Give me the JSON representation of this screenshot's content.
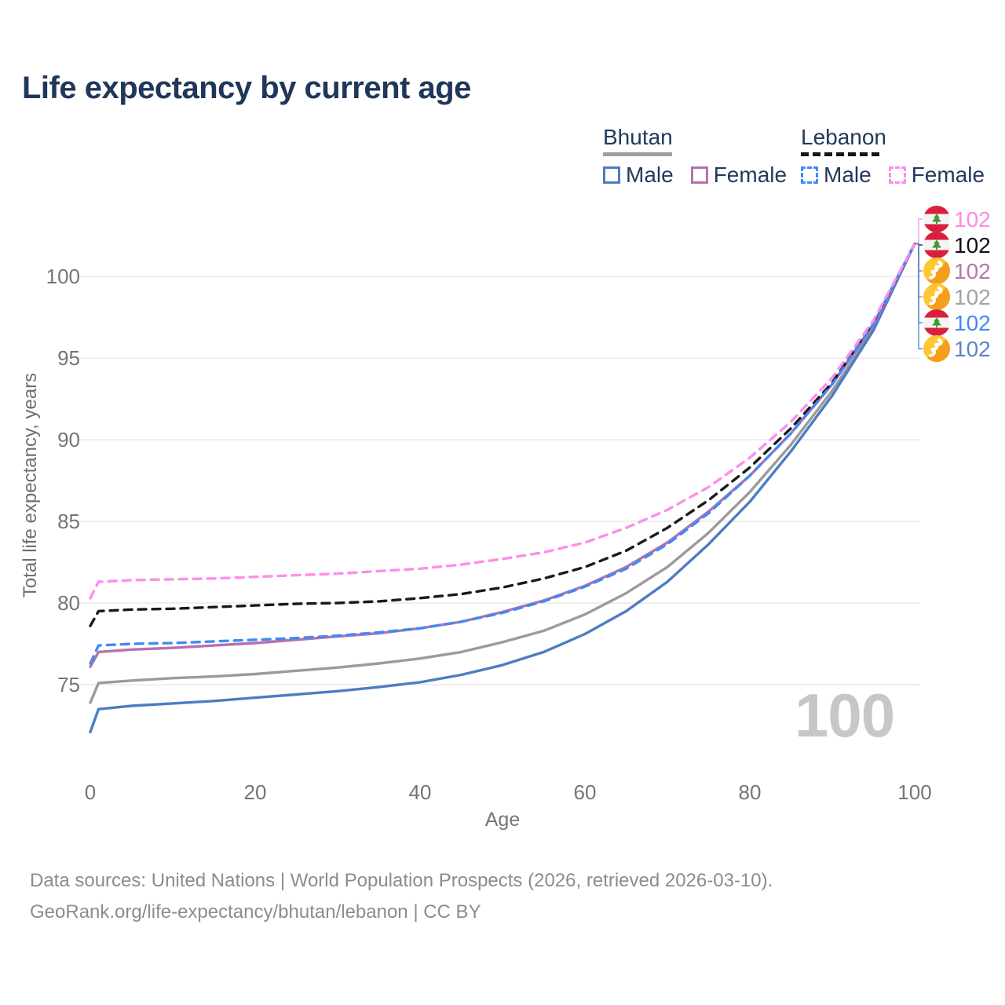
{
  "title": "Life expectancy by current age",
  "legend": {
    "groups": [
      {
        "country": "Bhutan",
        "line_style": "solid",
        "items": [
          {
            "label": "Male",
            "series": "bhutan-male"
          },
          {
            "label": "Female",
            "series": "bhutan-female"
          }
        ]
      },
      {
        "country": "Lebanon",
        "line_style": "dashed",
        "items": [
          {
            "label": "Male",
            "series": "lebanon-male"
          },
          {
            "label": "Female",
            "series": "lebanon-female"
          }
        ]
      }
    ]
  },
  "colors": {
    "title_text": "#1f3758",
    "legend_text": "#22395c",
    "bhutan_underline": "#9e9e9e",
    "lebanon_underline": "#141414",
    "gridline": "#eaeaea",
    "tick_text": "#757575",
    "axis_title_text": "#6e6e6e",
    "watermark_text": "#c7c7c7",
    "footer_text": "#8c8c8c",
    "lebanon_flag_red": "#d91f3c",
    "lebanon_flag_green": "#3a9b35",
    "bhutan_flag_yellow": "#ffc832",
    "bhutan_flag_orange": "#f69d1c"
  },
  "watermark": "100",
  "footer": {
    "line1": "Data sources: United Nations | World Population Prospects (2026, retrieved 2026-03-10).",
    "line2": "GeoRank.org/life-expectancy/bhutan/lebanon | CC BY"
  },
  "chart_data": {
    "type": "line",
    "title": "Life expectancy by current age",
    "xlabel": "Age",
    "ylabel": "Total life expectancy, years",
    "xlim": [
      0,
      100
    ],
    "ylim": [
      72,
      103
    ],
    "x_ticks": [
      0,
      20,
      40,
      60,
      80,
      100
    ],
    "y_ticks": [
      75,
      80,
      85,
      90,
      95,
      100
    ],
    "grid": "horizontal",
    "legend_position": "top-right",
    "x": [
      0,
      1,
      5,
      10,
      15,
      20,
      25,
      30,
      35,
      40,
      45,
      50,
      55,
      60,
      65,
      70,
      75,
      80,
      85,
      90,
      95,
      100
    ],
    "series": [
      {
        "id": "bhutan-both",
        "name": "Bhutan",
        "country": "Bhutan",
        "sex": "Both",
        "flag": "bhutan",
        "style": "solid",
        "color": "#9b9b9b",
        "label_color": "#a3a3a3",
        "end_label": "102",
        "values": [
          73.9,
          75.1,
          75.25,
          75.4,
          75.5,
          75.65,
          75.85,
          76.05,
          76.3,
          76.6,
          77.0,
          77.6,
          78.3,
          79.3,
          80.6,
          82.2,
          84.3,
          86.8,
          89.7,
          93.0,
          96.8,
          102
        ]
      },
      {
        "id": "bhutan-male",
        "name": "Bhutan Male",
        "country": "Bhutan",
        "sex": "Male",
        "flag": "bhutan",
        "style": "solid",
        "color": "#4d7cc3",
        "label_color": "#5b84c8",
        "end_label": "102",
        "values": [
          72.1,
          73.5,
          73.7,
          73.85,
          74.0,
          74.2,
          74.4,
          74.6,
          74.85,
          75.15,
          75.6,
          76.2,
          77.0,
          78.1,
          79.5,
          81.3,
          83.6,
          86.2,
          89.3,
          92.7,
          96.7,
          102
        ]
      },
      {
        "id": "bhutan-female",
        "name": "Bhutan Female",
        "country": "Bhutan",
        "sex": "Female",
        "flag": "bhutan",
        "style": "solid",
        "color": "#b671ae",
        "label_color": "#b577ad",
        "end_label": "102",
        "values": [
          76.1,
          77.0,
          77.15,
          77.25,
          77.4,
          77.55,
          77.75,
          77.95,
          78.15,
          78.45,
          78.85,
          79.45,
          80.15,
          81.05,
          82.2,
          83.7,
          85.6,
          87.8,
          90.4,
          93.4,
          97.0,
          102
        ]
      },
      {
        "id": "lebanon-both",
        "name": "Lebanon",
        "country": "Lebanon",
        "sex": "Both",
        "flag": "lebanon",
        "style": "dashed",
        "color": "#1a1a1a",
        "label_color": "#111111",
        "end_label": "102",
        "values": [
          78.6,
          79.5,
          79.6,
          79.65,
          79.75,
          79.85,
          79.95,
          80.0,
          80.1,
          80.3,
          80.55,
          80.95,
          81.5,
          82.2,
          83.2,
          84.6,
          86.3,
          88.3,
          90.7,
          93.5,
          97.2,
          102
        ]
      },
      {
        "id": "lebanon-male",
        "name": "Lebanon Male",
        "country": "Lebanon",
        "sex": "Male",
        "flag": "lebanon",
        "style": "dashed",
        "color": "#418af4",
        "label_color": "#418af4",
        "end_label": "102",
        "values": [
          76.3,
          77.4,
          77.5,
          77.55,
          77.65,
          77.75,
          77.85,
          78.0,
          78.2,
          78.45,
          78.85,
          79.4,
          80.1,
          81.0,
          82.1,
          83.6,
          85.5,
          87.8,
          90.4,
          93.4,
          97.1,
          102
        ]
      },
      {
        "id": "lebanon-female",
        "name": "Lebanon Female",
        "country": "Lebanon",
        "sex": "Female",
        "flag": "lebanon",
        "style": "dashed",
        "color": "#fc8eec",
        "label_color": "#fb8ae5",
        "end_label": "102",
        "values": [
          80.3,
          81.3,
          81.4,
          81.45,
          81.5,
          81.6,
          81.7,
          81.8,
          81.95,
          82.1,
          82.35,
          82.7,
          83.1,
          83.7,
          84.6,
          85.7,
          87.1,
          88.9,
          91.1,
          93.8,
          97.3,
          102
        ]
      }
    ],
    "end_label_order": [
      "lebanon-female",
      "lebanon-both",
      "bhutan-female",
      "bhutan-both",
      "lebanon-male",
      "bhutan-male"
    ]
  }
}
